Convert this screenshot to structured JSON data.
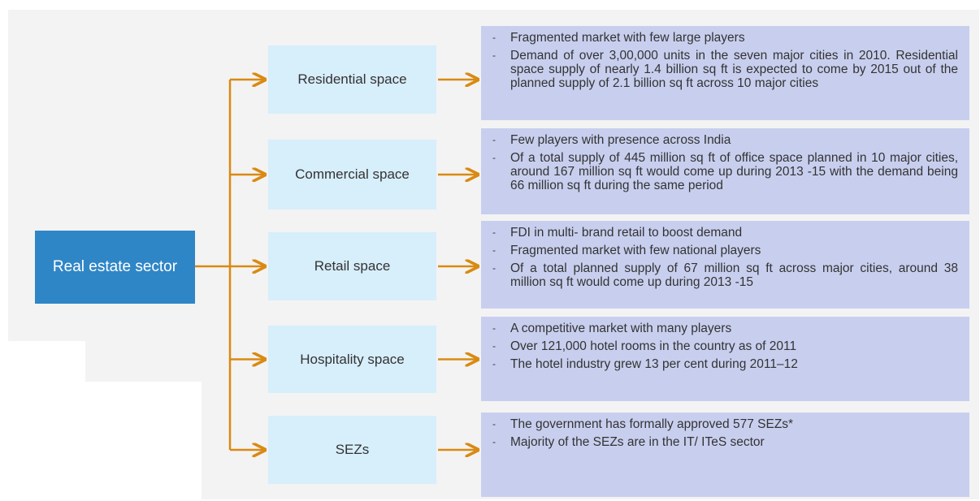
{
  "root": {
    "label": "Real estate sector"
  },
  "branches": [
    {
      "label": "Residential space",
      "bullets": [
        "Fragmented market with few large players",
        "Demand of over 3,00,000 units in the seven major cities in 2010. Residential space supply of nearly 1.4 billion sq ft is expected to come by 2015 out of the planned supply of 2.1 billion sq ft across 10 major cities"
      ]
    },
    {
      "label": "Commercial space",
      "bullets": [
        "Few players with presence across India",
        "Of a total supply of 445 million sq ft of office space planned in 10 major cities, around 167 million sq ft would come up during 2013 -15 with the demand being 66 million sq ft during the same period"
      ]
    },
    {
      "label": "Retail space",
      "bullets": [
        "FDI in multi- brand retail to boost demand",
        "Fragmented market with few national players",
        "Of a total planned supply of 67 million sq ft across major cities, around 38 million sq ft would come up during 2013 -15"
      ]
    },
    {
      "label": "Hospitality space",
      "bullets": [
        "A competitive market with many players",
        "Over 121,000 hotel rooms in the country as of 2011",
        "The hotel industry grew 13 per cent during 2011–12"
      ]
    },
    {
      "label": "SEZs",
      "bullets": [
        "The government has formally approved 577 SEZs*",
        "Majority of the SEZs are in the IT/ ITeS sector"
      ]
    }
  ]
}
